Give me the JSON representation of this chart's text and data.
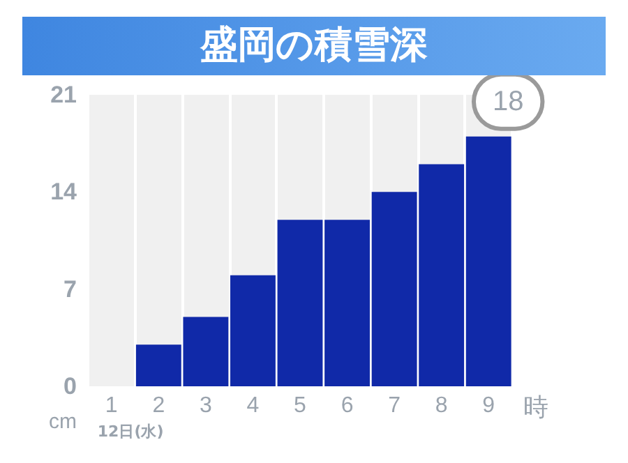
{
  "chart_data": {
    "type": "bar",
    "title": "盛岡の積雪深",
    "xlabel": "時",
    "ylabel": "cm",
    "categories": [
      "1",
      "2",
      "3",
      "4",
      "5",
      "6",
      "7",
      "8",
      "9"
    ],
    "values": [
      0,
      3,
      5,
      8,
      12,
      12,
      14,
      16,
      18
    ],
    "value_labels": [
      null,
      null,
      null,
      null,
      null,
      null,
      null,
      null,
      "18"
    ],
    "color": "#1029a8",
    "ylim": [
      0,
      21
    ],
    "yticks": [
      0,
      7,
      14,
      21
    ],
    "grid": "x",
    "annotations": [
      "12日(水)"
    ]
  }
}
